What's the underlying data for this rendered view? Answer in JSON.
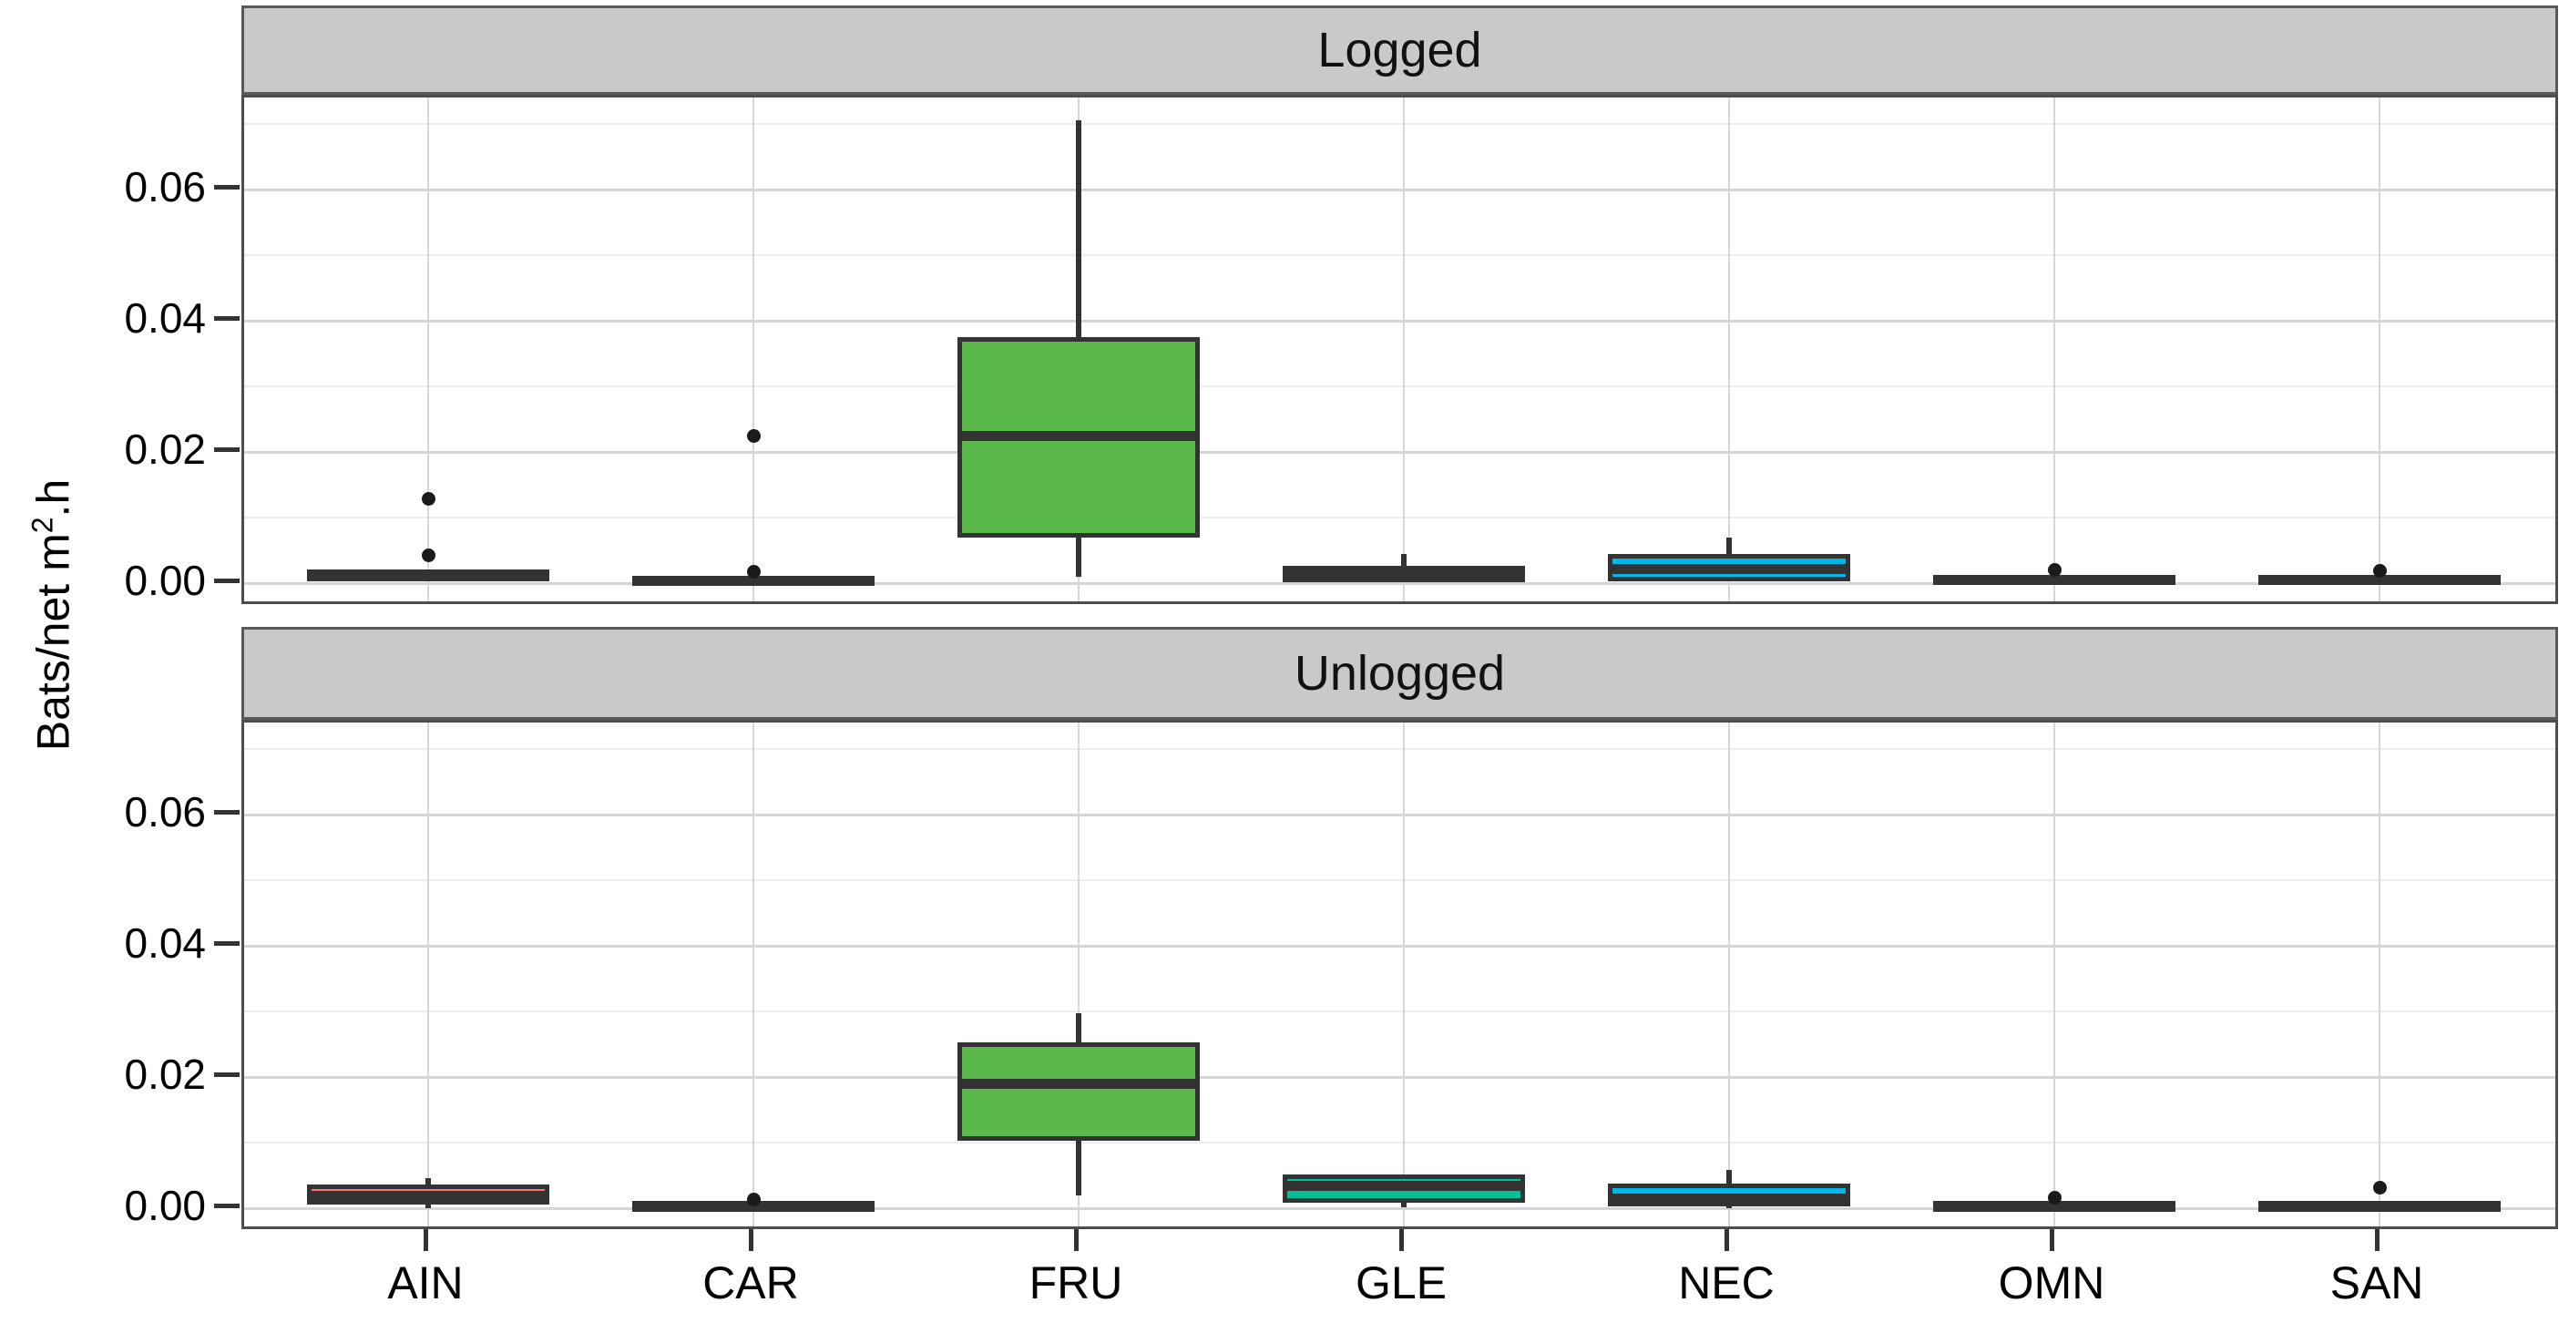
{
  "chart_data": {
    "type": "boxplot",
    "title": "",
    "xlabel": "",
    "ylabel_parts": [
      "Bats/net m",
      "2",
      ".h"
    ],
    "facet_labels": [
      "Logged",
      "Unlogged"
    ],
    "categories": [
      "AIN",
      "CAR",
      "FRU",
      "GLE",
      "NEC",
      "OMN",
      "SAN"
    ],
    "y_axis": {
      "tick_labels": [
        "0.00",
        "0.02",
        "0.04",
        "0.06"
      ],
      "tick_values": [
        0,
        0.02,
        0.04,
        0.06
      ],
      "minor_values": [
        0.01,
        0.03,
        0.05,
        0.07
      ],
      "ylim": [
        -0.0037,
        0.0741
      ],
      "grid": "on",
      "legend": "none"
    },
    "palette": {
      "AIN": "#F8766D",
      "CAR": "#C49A00",
      "FRU": "#5BB84A",
      "GLE": "#00C094",
      "NEC": "#00B6EB",
      "OMN": "#A58AFF",
      "SAN": "#FB61D7"
    },
    "style": {
      "strip_fill": "#C9C9C9",
      "strip_border": "#595959",
      "panel_border": "#4D4D4D",
      "major_grid": "#D6D6D6",
      "minor_grid": "#ECECEC",
      "box_line": "#333333",
      "outlier_color": "#1A1A1A",
      "text_color": "#000000"
    },
    "facets": [
      {
        "label": "Logged",
        "boxes": [
          {
            "category": "AIN",
            "min": 0.0004,
            "q1": 0.0004,
            "median": 0.0011,
            "q3": 0.0021,
            "max": 0.0021,
            "outliers": [
              0.0043,
              0.0129
            ]
          },
          {
            "category": "CAR",
            "min": 0.0,
            "q1": 0.0,
            "median": 0.0004,
            "q3": 0.0011,
            "max": 0.0011,
            "outliers": [
              0.0018,
              0.0225
            ]
          },
          {
            "category": "FRU",
            "min": 0.001,
            "q1": 0.007,
            "median": 0.0225,
            "q3": 0.0375,
            "max": 0.0705,
            "outliers": []
          },
          {
            "category": "GLE",
            "min": 0.0001,
            "q1": 0.0001,
            "median": 0.0012,
            "q3": 0.0026,
            "max": 0.0044,
            "outliers": []
          },
          {
            "category": "NEC",
            "min": 0.0002,
            "q1": 0.0003,
            "median": 0.0021,
            "q3": 0.0045,
            "max": 0.0069,
            "outliers": []
          },
          {
            "category": "OMN",
            "min": 0.0,
            "q1": 0.0,
            "median": 0.0005,
            "q3": 0.0011,
            "max": 0.0011,
            "outliers": [
              0.002
            ]
          },
          {
            "category": "SAN",
            "min": 0.0,
            "q1": 0.0,
            "median": 0.0005,
            "q3": 0.0011,
            "max": 0.0011,
            "outliers": [
              0.0019
            ]
          }
        ]
      },
      {
        "label": "Unlogged",
        "boxes": [
          {
            "category": "AIN",
            "min": 0.0,
            "q1": 0.0006,
            "median": 0.0019,
            "q3": 0.0036,
            "max": 0.0046,
            "outliers": []
          },
          {
            "category": "CAR",
            "min": 0.0,
            "q1": 0.0,
            "median": 0.0004,
            "q3": 0.0009,
            "max": 0.0009,
            "outliers": [
              0.0013
            ]
          },
          {
            "category": "FRU",
            "min": 0.002,
            "q1": 0.0103,
            "median": 0.019,
            "q3": 0.0253,
            "max": 0.0297,
            "outliers": []
          },
          {
            "category": "GLE",
            "min": 0.0001,
            "q1": 0.0008,
            "median": 0.0034,
            "q3": 0.0052,
            "max": 0.0052,
            "outliers": []
          },
          {
            "category": "NEC",
            "min": 0.0,
            "q1": 0.0003,
            "median": 0.0015,
            "q3": 0.0037,
            "max": 0.0058,
            "outliers": []
          },
          {
            "category": "OMN",
            "min": 0.0,
            "q1": 0.0,
            "median": 0.0004,
            "q3": 0.0009,
            "max": 0.0009,
            "outliers": [
              0.0016
            ]
          },
          {
            "category": "SAN",
            "min": 0.0,
            "q1": 0.0,
            "median": 0.0004,
            "q3": 0.0009,
            "max": 0.0009,
            "outliers": [
              0.0031
            ]
          }
        ]
      }
    ]
  }
}
